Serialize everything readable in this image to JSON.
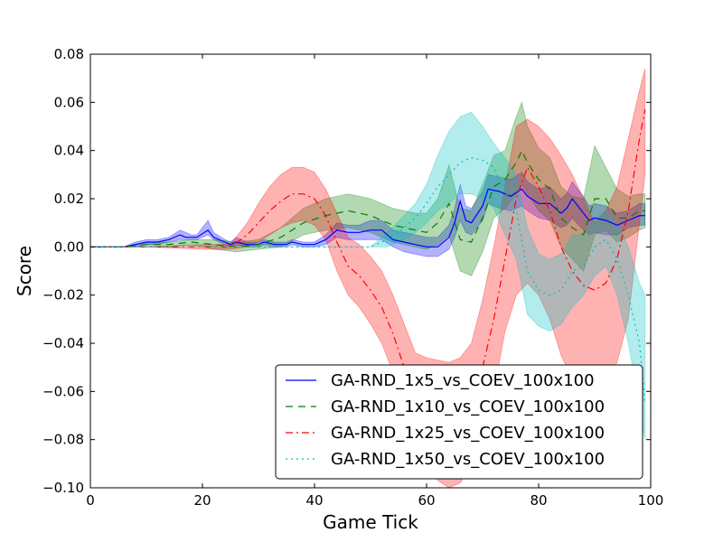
{
  "chart_data": {
    "type": "line",
    "title": "",
    "xlabel": "Game Tick",
    "ylabel": "Score",
    "xlim": [
      0,
      100
    ],
    "ylim": [
      -0.1,
      0.08
    ],
    "x_ticks": [
      0,
      20,
      40,
      60,
      80,
      100
    ],
    "y_ticks": [
      -0.1,
      -0.08,
      -0.06,
      -0.04,
      -0.02,
      0.0,
      0.02,
      0.04,
      0.06,
      0.08
    ],
    "x_tick_labels": [
      "0",
      "20",
      "40",
      "60",
      "80",
      "100"
    ],
    "y_tick_labels": [
      "−0.10",
      "−0.08",
      "−0.06",
      "−0.04",
      "−0.02",
      "0.00",
      "0.02",
      "0.04",
      "0.06",
      "0.08"
    ],
    "grid": false,
    "legend_position": "lower-right",
    "series": [
      {
        "name": "GA-RND_1x5_vs_COEV_100x100",
        "color": "#0000ff",
        "dash": "solid",
        "x": [
          0,
          6,
          8,
          10,
          12,
          14,
          16,
          17,
          18,
          19,
          21,
          22,
          24,
          25,
          26,
          28,
          30,
          31,
          33,
          35,
          36,
          38,
          40,
          42,
          44,
          46,
          48,
          50,
          52,
          54,
          56,
          58,
          60,
          62,
          64,
          65,
          66,
          67,
          68,
          70,
          71,
          73,
          75,
          77,
          78,
          80,
          82,
          84,
          85,
          86,
          88,
          89,
          90,
          92,
          94,
          96,
          98,
          99
        ],
        "y": [
          0,
          0,
          0.001,
          0.002,
          0.002,
          0.003,
          0.005,
          0.004,
          0.004,
          0.004,
          0.007,
          0.004,
          0.002,
          0.001,
          0.002,
          0.001,
          0.001,
          0.002,
          0.001,
          0.001,
          0.002,
          0.001,
          0.001,
          0.003,
          0.007,
          0.006,
          0.006,
          0.007,
          0.007,
          0.003,
          0.002,
          0.001,
          0.0,
          0.0,
          0.004,
          0.01,
          0.019,
          0.011,
          0.01,
          0.017,
          0.024,
          0.023,
          0.021,
          0.024,
          0.021,
          0.018,
          0.018,
          0.014,
          0.016,
          0.02,
          0.014,
          0.011,
          0.012,
          0.011,
          0.009,
          0.011,
          0.013,
          0.013
        ],
        "band_low": [
          0,
          0,
          0.0,
          0.001,
          0.001,
          0.002,
          0.003,
          0.003,
          0.003,
          0.003,
          0.005,
          0.003,
          0.001,
          0.0,
          0.001,
          0.0,
          0.0,
          0.001,
          0.0,
          0.0,
          0.001,
          0.0,
          0.0,
          0.001,
          0.004,
          0.003,
          0.003,
          0.003,
          0.003,
          0.0,
          -0.002,
          -0.003,
          -0.004,
          -0.004,
          -0.001,
          0.004,
          0.011,
          0.006,
          0.005,
          0.011,
          0.018,
          0.016,
          0.015,
          0.017,
          0.015,
          0.012,
          0.011,
          0.008,
          0.009,
          0.012,
          0.007,
          0.005,
          0.006,
          0.005,
          0.005,
          0.008,
          0.009,
          0.009
        ],
        "band_high": [
          0,
          0,
          0.002,
          0.003,
          0.003,
          0.004,
          0.007,
          0.006,
          0.005,
          0.005,
          0.011,
          0.006,
          0.003,
          0.002,
          0.004,
          0.002,
          0.002,
          0.003,
          0.002,
          0.002,
          0.003,
          0.002,
          0.002,
          0.005,
          0.01,
          0.009,
          0.009,
          0.011,
          0.011,
          0.007,
          0.006,
          0.005,
          0.004,
          0.004,
          0.009,
          0.016,
          0.026,
          0.017,
          0.016,
          0.023,
          0.03,
          0.029,
          0.028,
          0.031,
          0.027,
          0.024,
          0.025,
          0.02,
          0.022,
          0.027,
          0.021,
          0.017,
          0.018,
          0.017,
          0.014,
          0.015,
          0.018,
          0.018
        ]
      },
      {
        "name": "GA-RND_1x10_vs_COEV_100x100",
        "color": "#008000",
        "dash": "8,6",
        "x": [
          0,
          6,
          10,
          14,
          18,
          22,
          26,
          30,
          34,
          38,
          42,
          46,
          50,
          54,
          58,
          60,
          62,
          64,
          66,
          68,
          70,
          72,
          74,
          76,
          77,
          78,
          80,
          82,
          84,
          86,
          88,
          90,
          92,
          94,
          96,
          98,
          99
        ],
        "y": [
          0,
          0,
          0.001,
          0.001,
          0.002,
          0.001,
          0.0,
          0.001,
          0.004,
          0.01,
          0.013,
          0.015,
          0.013,
          0.009,
          0.007,
          0.006,
          0.01,
          0.018,
          0.003,
          0.002,
          0.012,
          0.025,
          0.028,
          0.035,
          0.04,
          0.035,
          0.028,
          0.024,
          0.012,
          0.008,
          0.005,
          0.02,
          0.02,
          0.012,
          0.012,
          0.015,
          0.015
        ],
        "band_low": [
          0,
          0,
          0.0,
          0.0,
          0.001,
          -0.001,
          -0.002,
          -0.001,
          0.0,
          0.005,
          0.007,
          0.008,
          0.006,
          0.002,
          0.0,
          -0.001,
          0.001,
          0.005,
          -0.01,
          -0.012,
          -0.002,
          0.012,
          0.016,
          0.022,
          0.026,
          0.022,
          0.015,
          0.011,
          0.0,
          -0.005,
          -0.01,
          0.005,
          0.007,
          0.002,
          0.004,
          0.007,
          0.008
        ],
        "band_high": [
          0,
          0,
          0.002,
          0.002,
          0.003,
          0.003,
          0.002,
          0.003,
          0.008,
          0.016,
          0.02,
          0.022,
          0.02,
          0.016,
          0.014,
          0.014,
          0.02,
          0.034,
          0.016,
          0.015,
          0.026,
          0.038,
          0.04,
          0.054,
          0.06,
          0.05,
          0.041,
          0.037,
          0.025,
          0.021,
          0.02,
          0.042,
          0.033,
          0.024,
          0.021,
          0.022,
          0.022
        ]
      },
      {
        "name": "GA-RND_1x25_vs_COEV_100x100",
        "color": "#ff0000",
        "dash": "8,4,2,4",
        "x": [
          0,
          10,
          20,
          25,
          28,
          30,
          32,
          34,
          36,
          38,
          40,
          42,
          44,
          46,
          48,
          50,
          52,
          54,
          56,
          58,
          60,
          62,
          64,
          66,
          68,
          70,
          72,
          74,
          76,
          78,
          80,
          82,
          84,
          86,
          88,
          90,
          92,
          94,
          96,
          98,
          99
        ],
        "y": [
          0,
          0,
          0.0,
          0.0,
          0.005,
          0.01,
          0.015,
          0.019,
          0.022,
          0.022,
          0.02,
          0.013,
          0.002,
          -0.008,
          -0.012,
          -0.018,
          -0.025,
          -0.036,
          -0.05,
          -0.063,
          -0.068,
          -0.072,
          -0.074,
          -0.072,
          -0.065,
          -0.05,
          -0.03,
          -0.005,
          0.02,
          0.033,
          0.025,
          0.015,
          0.0,
          -0.01,
          -0.016,
          -0.018,
          -0.015,
          -0.005,
          0.015,
          0.045,
          0.057
        ],
        "band_low": [
          0,
          0,
          -0.001,
          -0.001,
          0.0,
          0.002,
          0.005,
          0.008,
          0.01,
          0.011,
          0.009,
          0.003,
          -0.01,
          -0.02,
          -0.025,
          -0.032,
          -0.04,
          -0.052,
          -0.068,
          -0.082,
          -0.09,
          -0.097,
          -0.1,
          -0.098,
          -0.09,
          -0.078,
          -0.06,
          -0.035,
          -0.02,
          -0.015,
          -0.02,
          -0.03,
          -0.045,
          -0.055,
          -0.06,
          -0.062,
          -0.058,
          -0.048,
          -0.03,
          0.01,
          0.03
        ],
        "band_high": [
          0,
          0,
          0.001,
          0.001,
          0.01,
          0.018,
          0.025,
          0.03,
          0.033,
          0.033,
          0.031,
          0.024,
          0.014,
          0.004,
          0.001,
          -0.004,
          -0.01,
          -0.02,
          -0.032,
          -0.044,
          -0.046,
          -0.047,
          -0.048,
          -0.046,
          -0.04,
          -0.022,
          0.0,
          0.025,
          0.05,
          0.053,
          0.05,
          0.045,
          0.038,
          0.03,
          0.02,
          0.01,
          0.015,
          0.025,
          0.045,
          0.065,
          0.074
        ]
      },
      {
        "name": "GA-RND_1x50_vs_COEV_100x100",
        "color": "#00bfbf",
        "dash": "2,4",
        "x": [
          0,
          10,
          20,
          30,
          40,
          50,
          53,
          56,
          58,
          60,
          62,
          64,
          66,
          68,
          70,
          72,
          74,
          76,
          78,
          80,
          82,
          84,
          86,
          88,
          90,
          92,
          94,
          96,
          98,
          99
        ],
        "y": [
          0,
          0,
          0,
          0,
          0,
          0,
          0.003,
          0.008,
          0.012,
          0.018,
          0.025,
          0.03,
          0.035,
          0.037,
          0.036,
          0.033,
          0.023,
          0.015,
          -0.01,
          -0.018,
          -0.02,
          -0.018,
          -0.01,
          -0.008,
          0.0,
          0.003,
          -0.005,
          -0.02,
          -0.04,
          -0.065
        ],
        "band_low": [
          0,
          0,
          0,
          0,
          0,
          0,
          0.0,
          0.003,
          0.006,
          0.01,
          0.015,
          0.018,
          0.022,
          0.022,
          0.02,
          0.016,
          0.005,
          -0.005,
          -0.028,
          -0.033,
          -0.035,
          -0.032,
          -0.025,
          -0.02,
          -0.012,
          -0.008,
          -0.02,
          -0.04,
          -0.065,
          -0.08
        ],
        "band_high": [
          0,
          0,
          0,
          0,
          0,
          0,
          0.006,
          0.013,
          0.018,
          0.026,
          0.038,
          0.048,
          0.054,
          0.056,
          0.05,
          0.043,
          0.037,
          0.03,
          0.008,
          -0.003,
          -0.005,
          -0.003,
          0.005,
          0.005,
          0.012,
          0.015,
          0.01,
          0.0,
          -0.015,
          -0.02
        ]
      }
    ]
  }
}
